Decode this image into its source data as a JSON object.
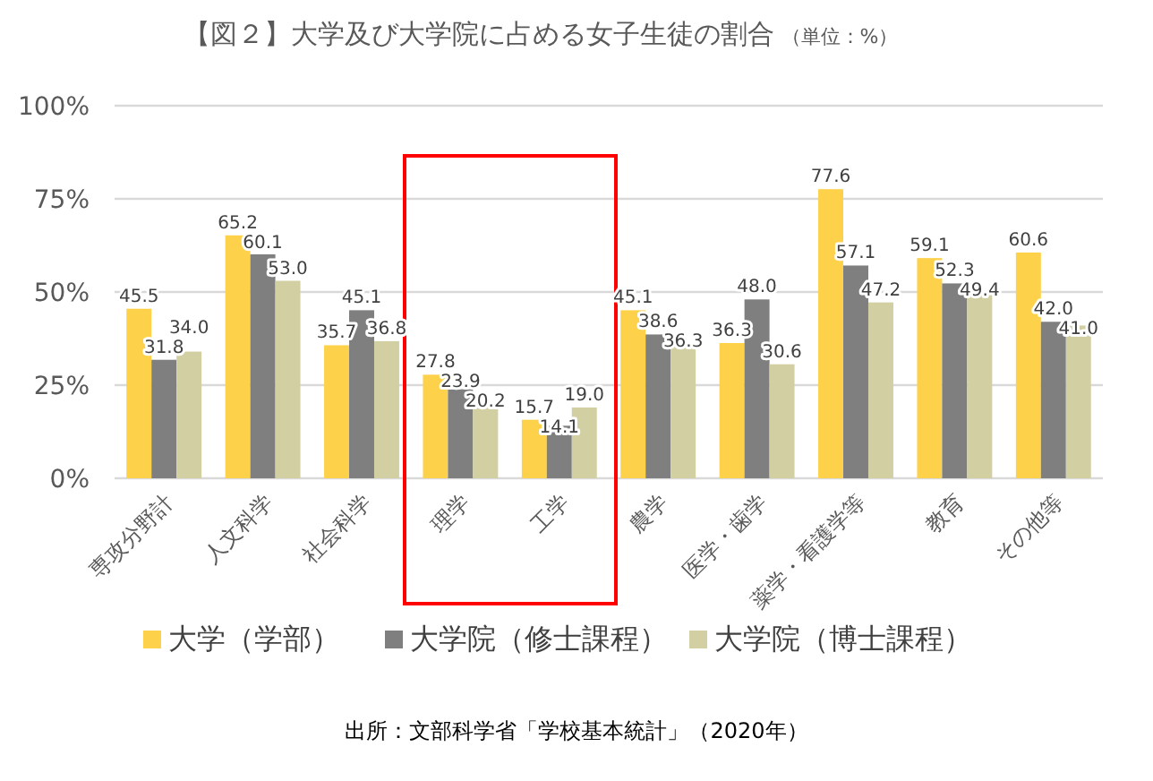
{
  "chart_data": {
    "type": "bar",
    "title": "【図２】大学及び大学院に占める女子生徒の割合",
    "subtitle": "（単位：%）",
    "categories": [
      "専攻分野計",
      "人文科学",
      "社会科学",
      "理学",
      "工学",
      "農学",
      "医学・歯学",
      "薬学・看護学等",
      "教育",
      "その他等"
    ],
    "series": [
      {
        "name": "大学（学部）",
        "color": "#fdd14a",
        "values": [
          45.5,
          65.2,
          35.7,
          27.8,
          15.7,
          45.1,
          36.3,
          77.6,
          59.1,
          60.6
        ],
        "value_labels": [
          "45.5",
          "65.2",
          "35.7",
          "27.8",
          "15.7",
          "45.1",
          "36.3",
          "77.6",
          "59.1",
          "60.6"
        ]
      },
      {
        "name": "大学院（修士課程）",
        "color": "#7f7f7f",
        "values": [
          31.8,
          60.1,
          45.1,
          23.9,
          14.1,
          38.6,
          48.0,
          57.1,
          52.3,
          42.0
        ],
        "value_labels": [
          "31.8",
          "60.1",
          "45.1",
          "23.9",
          "14.1",
          "38.6",
          "48.0",
          "57.1",
          "52.3",
          "42.0"
        ]
      },
      {
        "name": "大学院（博士課程）",
        "color": "#d2d0a2",
        "values": [
          34.0,
          53.0,
          36.8,
          20.2,
          19.0,
          36.3,
          30.6,
          47.2,
          49.4,
          41.0
        ],
        "value_labels": [
          "34.0",
          "53.0",
          "36.8",
          "20.2",
          "19.0",
          "36.3",
          "30.6",
          "47.2",
          "49.4",
          "41.0"
        ]
      }
    ],
    "ylim": [
      0,
      100
    ],
    "yticks": [
      {
        "value": 0,
        "label": "0%"
      },
      {
        "value": 25,
        "label": "25%"
      },
      {
        "value": 50,
        "label": "50%"
      },
      {
        "value": 75,
        "label": "75%"
      },
      {
        "value": 100,
        "label": "100%"
      }
    ],
    "grid": "y",
    "legend": "bottom",
    "annotations": [
      "出所：文部科学省「学校基本統計」（2020年）"
    ]
  }
}
